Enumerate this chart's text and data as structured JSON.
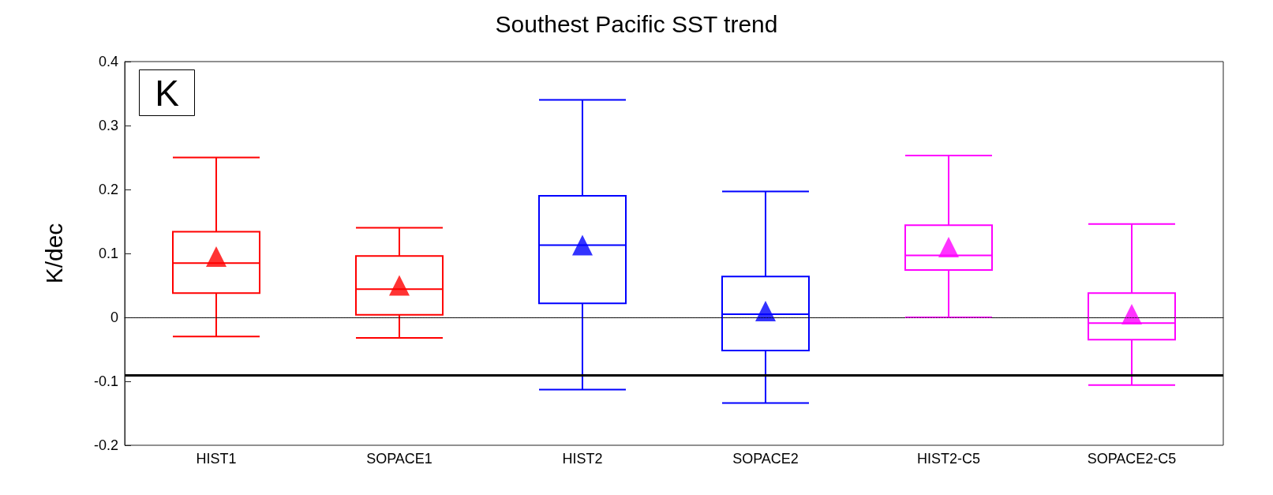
{
  "chart_data": {
    "type": "box",
    "title": "Southest Pacific SST trend",
    "ylabel": "K/dec",
    "annotations": [
      "K"
    ],
    "categories": [
      "HIST1",
      "SOPACE1",
      "HIST2",
      "SOPACE2",
      "HIST2-C5",
      "SOPACE2-C5"
    ],
    "colors": [
      "#ff0000",
      "#ff0000",
      "#0000ff",
      "#0000ff",
      "#ff00ff",
      "#ff00ff"
    ],
    "boxes": [
      {
        "low": -0.03,
        "q1": 0.038,
        "median": 0.085,
        "q3": 0.134,
        "high": 0.25,
        "mean": 0.095
      },
      {
        "low": -0.032,
        "q1": 0.004,
        "median": 0.044,
        "q3": 0.096,
        "high": 0.14,
        "mean": 0.05
      },
      {
        "low": -0.113,
        "q1": 0.022,
        "median": 0.113,
        "q3": 0.19,
        "high": 0.34,
        "mean": 0.113
      },
      {
        "low": -0.134,
        "q1": -0.052,
        "median": 0.005,
        "q3": 0.064,
        "high": 0.197,
        "mean": 0.01
      },
      {
        "low": 0.0,
        "q1": 0.074,
        "median": 0.097,
        "q3": 0.144,
        "high": 0.253,
        "mean": 0.11
      },
      {
        "low": -0.106,
        "q1": -0.035,
        "median": -0.009,
        "q3": 0.038,
        "high": 0.146,
        "mean": 0.005
      }
    ],
    "ylim": [
      -0.2,
      0.4
    ],
    "yticks": [
      -0.2,
      -0.1,
      0,
      0.1,
      0.2,
      0.3,
      0.4
    ],
    "ref_lines": [
      {
        "axis": "y",
        "value": 0,
        "color": "#000000",
        "line_style": "dotted"
      },
      {
        "axis": "y",
        "value": -0.092,
        "color": "#000000",
        "line_style": "solid"
      }
    ],
    "marker": "triangle",
    "grid": false
  }
}
